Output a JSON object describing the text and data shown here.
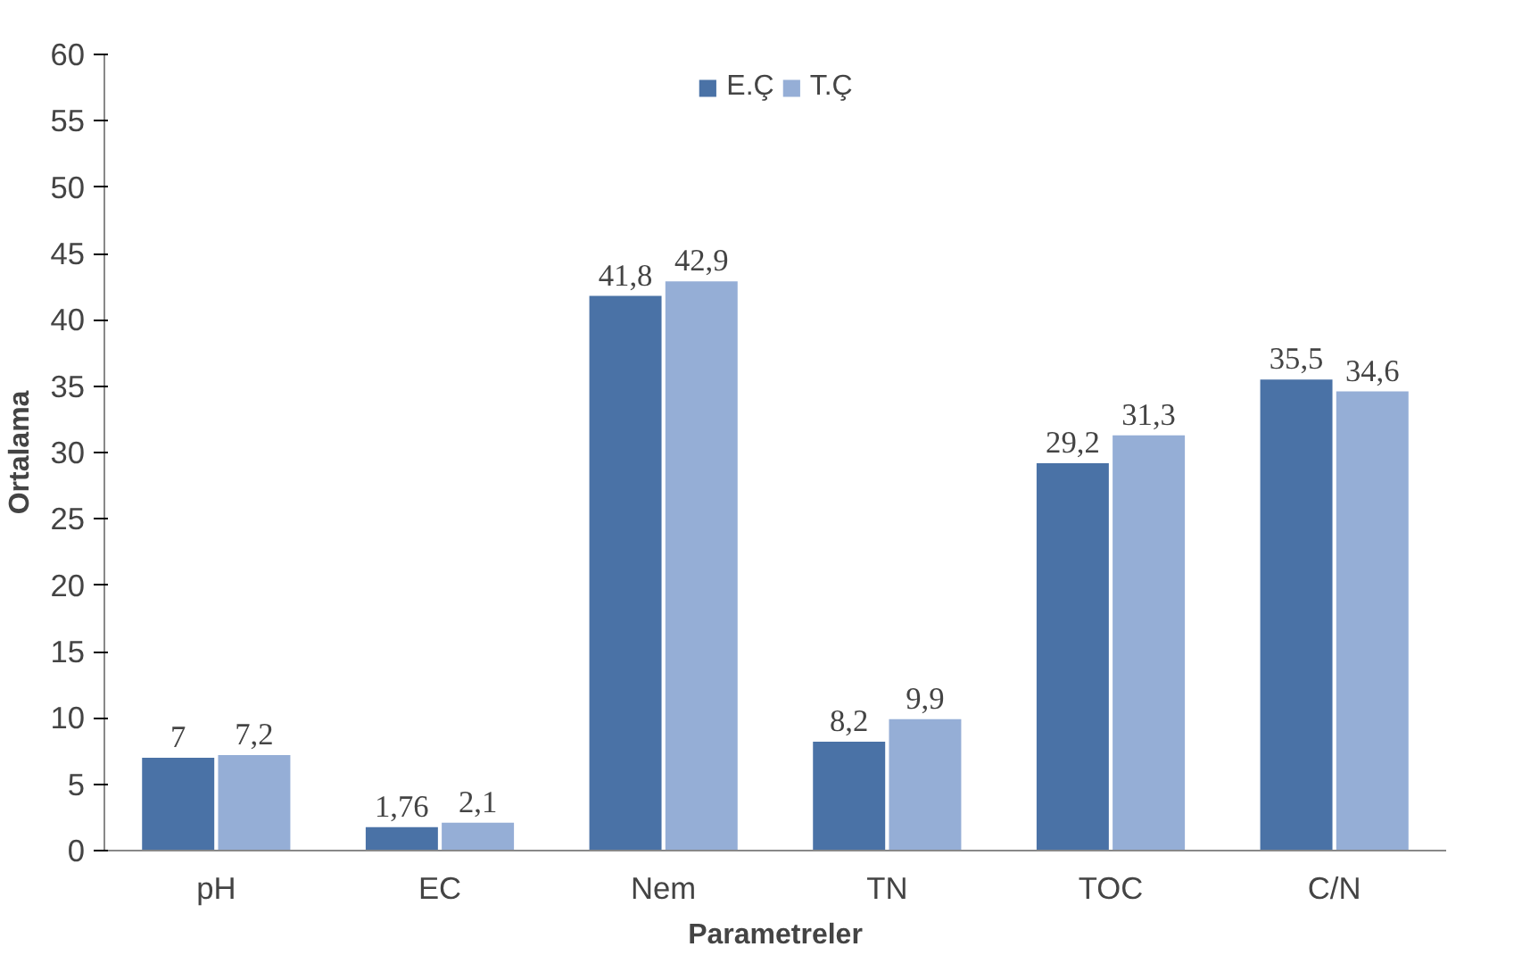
{
  "chart_data": {
    "type": "bar",
    "xlabel": "Parametreler",
    "ylabel": "Ortalama",
    "categories": [
      "pH",
      "EC",
      "Nem",
      "TN",
      "TOC",
      "C/N"
    ],
    "series": [
      {
        "name": "E.Ç",
        "color": "#4a72a6",
        "values": [
          7,
          1.76,
          41.8,
          8.2,
          29.2,
          35.5
        ],
        "value_labels": [
          "7",
          "1,76",
          "41,8",
          "8,2",
          "29,2",
          "35,5"
        ]
      },
      {
        "name": "T.Ç",
        "color": "#95aed6",
        "values": [
          7.2,
          2.1,
          42.9,
          9.9,
          31.3,
          34.6
        ],
        "value_labels": [
          "7,2",
          "2,1",
          "42,9",
          "9,9",
          "31,3",
          "34,6"
        ]
      }
    ],
    "ylim": [
      0,
      60
    ],
    "yticks": [
      0,
      5,
      10,
      15,
      20,
      25,
      30,
      35,
      40,
      45,
      50,
      55,
      60
    ],
    "grid": false,
    "legend": "top"
  }
}
